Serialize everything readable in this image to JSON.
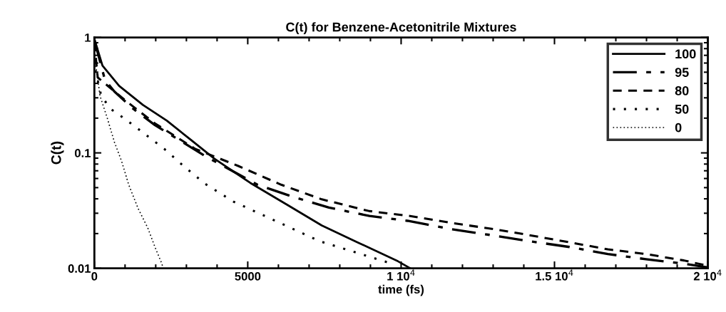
{
  "chart_data": {
    "type": "line",
    "title": "C(t) for Benzene-Acetonitrile Mixtures",
    "xlabel": "time (fs)",
    "ylabel": "C(t)",
    "log": "y",
    "grid": false,
    "legend": "top right",
    "marker": "none",
    "xlim": [
      0,
      20000
    ],
    "xticks": [
      0,
      5000,
      {
        "value": 10000,
        "label": "1 10$^{4}$"
      },
      {
        "value": 15000,
        "label": "1.5 10$^{4}$"
      },
      {
        "value": 20000,
        "label": "2 10$^{4}$"
      }
    ],
    "ylim": [
      0.01,
      1
    ],
    "yticks": [
      0.01,
      0.1,
      1
    ],
    "series": [
      {
        "name": "100",
        "color": "#000000",
        "line_style": "solid",
        "x": [
          0,
          264,
          808,
          1585,
          2362,
          3140,
          3916,
          5082,
          6247,
          7413,
          8578,
          9900,
          10300
        ],
        "values": [
          0.97,
          0.57,
          0.38,
          0.26,
          0.19,
          0.13,
          0.089,
          0.055,
          0.036,
          0.0235,
          0.0168,
          0.0115,
          0.01
        ]
      },
      {
        "name": "95",
        "color": "#000000",
        "line_style": "dashdot",
        "x": [
          0,
          343,
          653,
          1275,
          1974,
          2750,
          3606,
          5315,
          6480,
          7646,
          8967,
          10210,
          11610,
          12930,
          14170,
          15490,
          16740,
          17980,
          19300,
          20000
        ],
        "values": [
          0.95,
          0.43,
          0.34,
          0.24,
          0.174,
          0.13,
          0.094,
          0.053,
          0.0416,
          0.0336,
          0.0284,
          0.0258,
          0.0219,
          0.0194,
          0.0172,
          0.0153,
          0.0133,
          0.012,
          0.0109,
          0.0102
        ]
      },
      {
        "name": "80",
        "color": "#000000",
        "line_style": "dashed",
        "x": [
          0,
          109,
          1042,
          1974,
          3294,
          4692,
          6090,
          7413,
          8967,
          10290,
          11690,
          13010,
          14170,
          15490,
          16740,
          17980,
          19220,
          20000
        ],
        "values": [
          0.9,
          0.45,
          0.28,
          0.18,
          0.108,
          0.077,
          0.053,
          0.0396,
          0.0313,
          0.0284,
          0.0246,
          0.0219,
          0.0194,
          0.0168,
          0.0146,
          0.0133,
          0.0117,
          0.0105
        ]
      },
      {
        "name": "50",
        "color": "#000000",
        "line_style": "dotted",
        "x": [
          0,
          31,
          226,
          536,
          963,
          1585,
          2284,
          2906,
          3606,
          4538,
          5470,
          6403,
          7336,
          8345,
          9355,
          9745
        ],
        "values": [
          0.8,
          0.52,
          0.31,
          0.24,
          0.2,
          0.15,
          0.108,
          0.077,
          0.054,
          0.0378,
          0.0291,
          0.0224,
          0.0172,
          0.0142,
          0.0117,
          0.0109
        ]
      },
      {
        "name": "0",
        "color": "#000000",
        "line_style": "finedotted",
        "x": [
          0,
          186,
          420,
          653,
          886,
          1119,
          1430,
          1741,
          1974,
          2168,
          2250
        ],
        "values": [
          0.7,
          0.31,
          0.2,
          0.124,
          0.085,
          0.053,
          0.0328,
          0.0224,
          0.0153,
          0.0115,
          0.01
        ]
      }
    ]
  }
}
